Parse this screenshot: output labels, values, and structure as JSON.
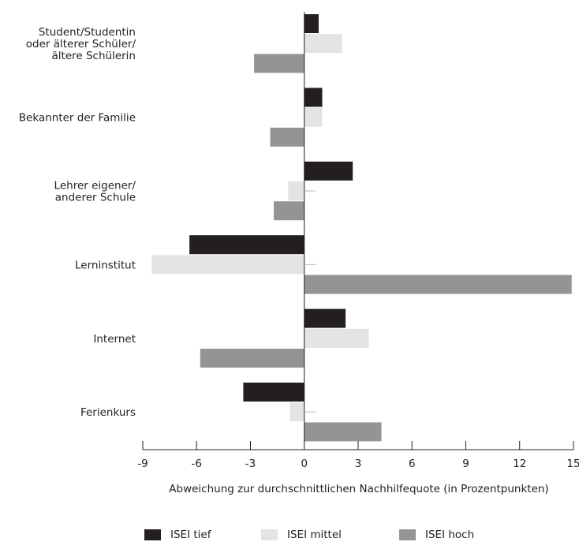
{
  "chart_data": {
    "type": "bar",
    "orientation": "horizontal",
    "categories": [
      [
        "Student/Studentin",
        "oder älterer Schüler/",
        "ältere Schülerin"
      ],
      [
        "Bekannter der Familie"
      ],
      [
        "Lehrer eigener/",
        "anderer Schule"
      ],
      [
        "Lerninstitut"
      ],
      [
        "Internet"
      ],
      [
        "Ferienkurs"
      ]
    ],
    "series": [
      {
        "name": "ISEI tief",
        "color": "#231f20",
        "values": [
          0.8,
          1.0,
          2.7,
          -6.4,
          2.3,
          -3.4
        ]
      },
      {
        "name": "ISEI mittel",
        "color": "#e3e4e5",
        "values": [
          2.1,
          1.0,
          -0.9,
          -8.5,
          3.6,
          -0.8
        ]
      },
      {
        "name": "ISEI hoch",
        "color": "#949494",
        "values": [
          -2.8,
          -1.9,
          -1.7,
          14.9,
          -5.8,
          4.3
        ]
      }
    ],
    "xlabel": "Abweichung zur durchschnittlichen Nachhilfequote (in Prozentpunkten)",
    "xlim": [
      -9,
      15
    ],
    "xticks": [
      -9,
      -6,
      -3,
      0,
      3,
      6,
      9,
      12,
      15
    ],
    "grid": false,
    "legend_position": "bottom"
  }
}
